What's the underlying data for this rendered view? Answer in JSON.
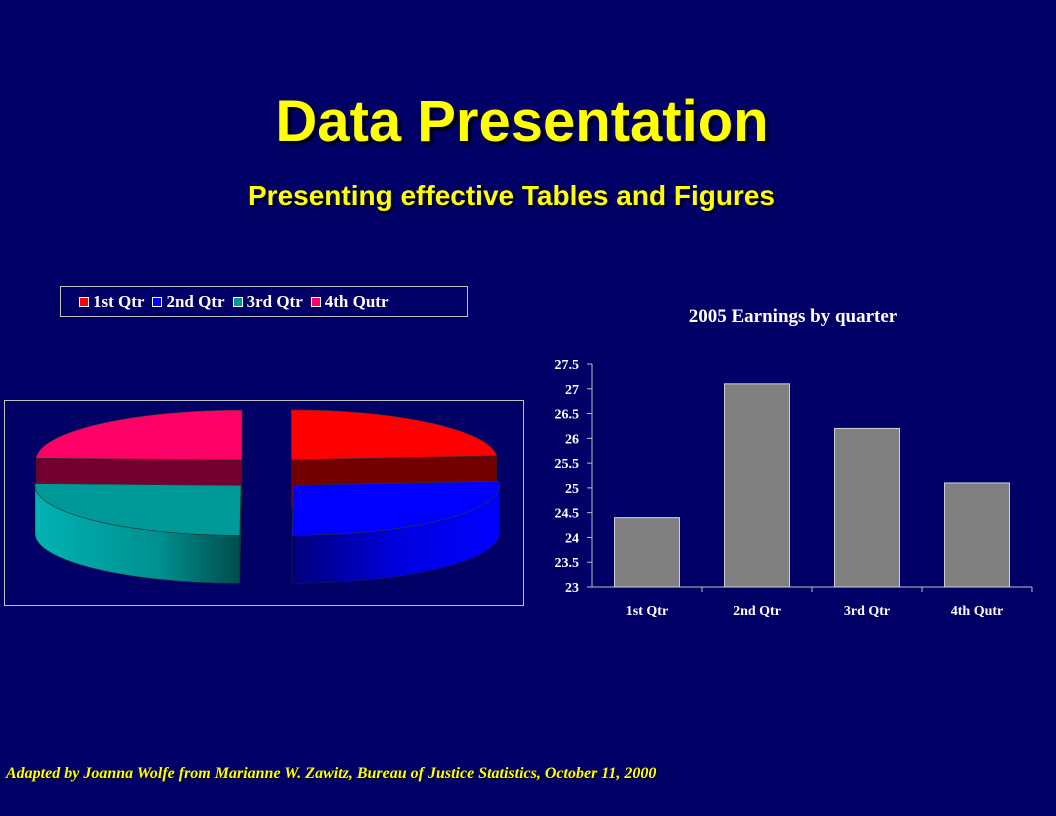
{
  "slide": {
    "title": "Data Presentation",
    "subtitle": "Presenting effective Tables and Figures",
    "footer": "Adapted by Joanna Wolfe from Marianne W. Zawitz, Bureau of Justice Statistics, October 11, 2000",
    "title_color": "#ffff00",
    "background_color": "#000066"
  },
  "legend": [
    {
      "label": "1st Qtr",
      "color": "#ff0000"
    },
    {
      "label": "2nd Qtr",
      "color": "#0000ff"
    },
    {
      "label": "3rd Qtr",
      "color": "#009999"
    },
    {
      "label": "4th Qutr",
      "color": "#ff0066"
    }
  ],
  "chart_data": [
    {
      "type": "pie",
      "exploded": true,
      "three_d": true,
      "categories": [
        "1st Qtr",
        "2nd Qtr",
        "3rd Qtr",
        "4th Qutr"
      ],
      "values": [
        24.4,
        27.1,
        26.2,
        25.1
      ],
      "colors": [
        "#ff0000",
        "#0000ff",
        "#009999",
        "#ff0066"
      ],
      "legend_position": "top"
    },
    {
      "type": "bar",
      "title": "2005 Earnings by quarter",
      "categories": [
        "1st Qtr",
        "2nd Qtr",
        "3rd Qtr",
        "4th Qutr"
      ],
      "values": [
        24.4,
        27.1,
        26.2,
        25.1
      ],
      "ylim": [
        23,
        27.5
      ],
      "yticks": [
        "23",
        "23.5",
        "24",
        "24.5",
        "25",
        "25.5",
        "26",
        "26.5",
        "27",
        "27.5"
      ],
      "bar_color": "#808080",
      "grid": false,
      "xlabel": "",
      "ylabel": ""
    }
  ]
}
